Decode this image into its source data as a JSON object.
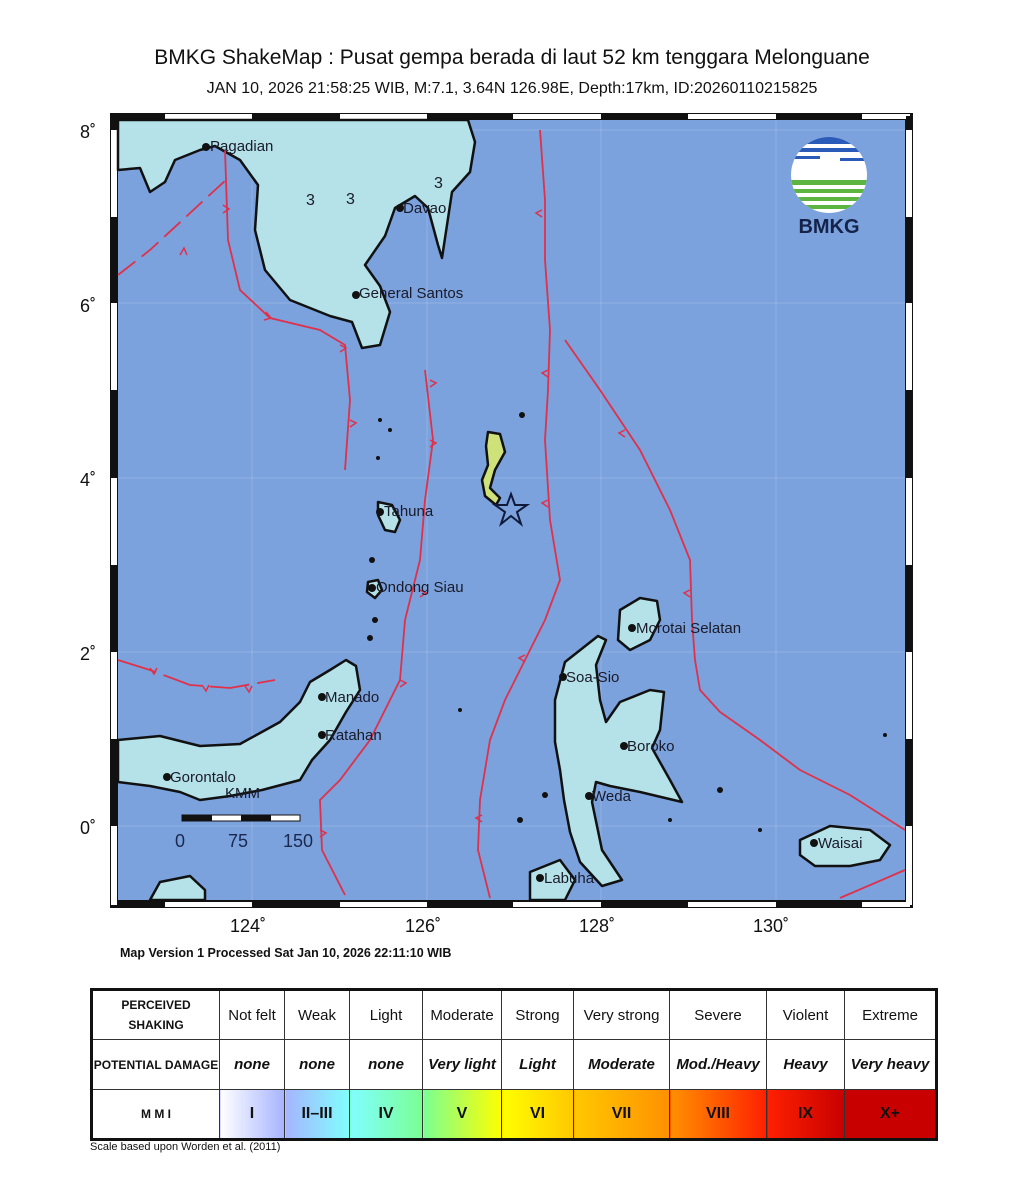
{
  "header": {
    "title": "BMKG ShakeMap : Pusat gempa berada di laut 52 km tenggara Melonguane",
    "subtitle": "JAN 10, 2026 21:58:25 WIB, M:7.1, 3.64N 126.98E, Depth:17km, ID:20260110215825"
  },
  "map": {
    "sea_color": "#7ba2dc",
    "land_color": "#b4e2e8",
    "fault_color": "#e0304a",
    "epicenter_icon": "star-outline",
    "lat_labels": [
      "8˚",
      "6˚",
      "4˚",
      "2˚",
      "0˚"
    ],
    "lon_labels": [
      "124˚",
      "126˚",
      "128˚",
      "130˚"
    ],
    "places": [
      "Pagadian",
      "Davao",
      "General Santos",
      "Tahuna",
      "Ondong Siau",
      "Morotai Selatan",
      "Soa-Sio",
      "Manado",
      "Boroko",
      "Ratahan",
      "Weda",
      "Gorontalo",
      "KMM",
      "Labuha",
      "Waisai"
    ],
    "contour_labels": [
      "3",
      "3",
      "3"
    ],
    "scale_bar": {
      "labels": [
        "0",
        "75",
        "150"
      ]
    },
    "logo_text": "BMKG"
  },
  "footer": "Map Version 1 Processed Sat Jan 10, 2026 22:11:10 WIB",
  "legend": {
    "rows": [
      {
        "header": "PERCEIVED SHAKING",
        "cells": [
          "Not felt",
          "Weak",
          "Light",
          "Moderate",
          "Strong",
          "Very strong",
          "Severe",
          "Violent",
          "Extreme"
        ]
      },
      {
        "header": "POTENTIAL DAMAGE",
        "cells": [
          "none",
          "none",
          "none",
          "Very light",
          "Light",
          "Moderate",
          "Mod./Heavy",
          "Heavy",
          "Very heavy"
        ]
      },
      {
        "header": "M M I",
        "cells": [
          "I",
          "II–III",
          "IV",
          "V",
          "VI",
          "VII",
          "VIII",
          "IX",
          "X+"
        ]
      }
    ],
    "mmi_colors": [
      "#ffffff",
      "#a6b4ff",
      "#80ffff",
      "#7aff93",
      "#ffff00",
      "#ffc800",
      "#ff9100",
      "#ff2000",
      "#c80000"
    ],
    "note": "Scale based upon Worden et al. (2011)"
  }
}
